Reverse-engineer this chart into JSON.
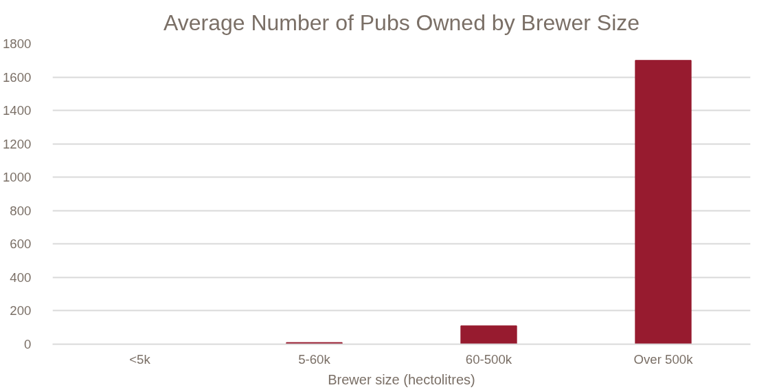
{
  "chart_data": {
    "type": "bar",
    "title": "Average Number of Pubs Owned by Brewer Size",
    "xlabel": "Brewer size (hectolitres)",
    "categories": [
      "<5k",
      "5-60k",
      "60-500k",
      "Over 500k"
    ],
    "values": [
      0,
      10,
      110,
      1700
    ],
    "color": "#971b2f",
    "ylim": [
      0,
      1800
    ],
    "yticks": [
      0,
      200,
      400,
      600,
      800,
      1000,
      1200,
      1400,
      1600,
      1800
    ],
    "grid": "y"
  }
}
